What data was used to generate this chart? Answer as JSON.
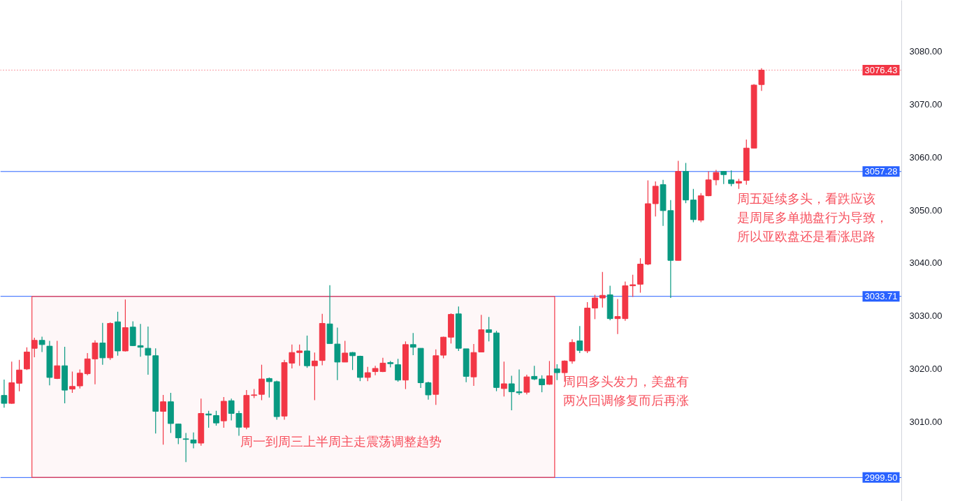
{
  "chart_data": {
    "type": "candlestick",
    "categories": [
      null,
      null,
      null,
      null,
      null,
      null,
      null,
      null,
      null,
      null,
      null,
      null,
      null,
      null,
      null,
      null,
      null,
      null,
      null,
      null,
      null,
      null,
      null,
      null,
      null,
      null,
      null,
      null,
      null,
      null,
      null,
      null,
      null,
      null,
      null,
      null,
      null,
      null,
      null,
      null,
      null,
      null,
      null,
      null,
      null,
      null,
      null,
      null,
      null,
      null,
      null,
      null,
      null,
      null,
      null,
      null,
      null,
      null,
      null,
      null,
      null,
      null,
      null,
      null,
      null,
      null,
      null,
      null,
      null,
      null,
      null,
      null,
      null,
      null,
      null,
      null,
      null,
      null,
      null,
      null,
      null,
      null,
      null,
      null,
      null,
      null,
      null,
      null,
      null,
      null,
      null,
      null,
      null,
      null,
      null,
      null,
      null,
      null,
      null,
      null,
      null,
      null,
      null,
      null,
      null,
      null,
      null,
      null,
      null,
      null,
      null,
      null,
      null,
      null,
      null,
      null,
      null,
      null,
      null
    ],
    "ohlc": [
      [
        3015.0,
        3018.0,
        3012.7,
        3013.5
      ],
      [
        3013.5,
        3021.4,
        3013.4,
        3017.4
      ],
      [
        3017.3,
        3021.7,
        3015.8,
        3019.8
      ],
      [
        3020.0,
        3024.1,
        3019.8,
        3023.2
      ],
      [
        3023.9,
        3025.9,
        3022.2,
        3025.4
      ],
      [
        3025.4,
        3026.1,
        3023.2,
        3024.6
      ],
      [
        3024.3,
        3025.3,
        3016.9,
        3018.4
      ],
      [
        3018.2,
        3025.3,
        3018.1,
        3020.6
      ],
      [
        3020.6,
        3024.2,
        3013.5,
        3016.0
      ],
      [
        3016.2,
        3019.5,
        3015.5,
        3016.7
      ],
      [
        3016.8,
        3019.9,
        3016.3,
        3019.2
      ],
      [
        3019.1,
        3023.0,
        3018.8,
        3021.9
      ],
      [
        3021.9,
        3025.4,
        3017.1,
        3024.9
      ],
      [
        3024.9,
        3028.7,
        3020.8,
        3022.1
      ],
      [
        3022.1,
        3028.8,
        3021.7,
        3028.6
      ],
      [
        3028.9,
        3030.8,
        3022.5,
        3023.4
      ],
      [
        3023.4,
        3033.1,
        3023.3,
        3027.8
      ],
      [
        3027.9,
        3029.0,
        3024.3,
        3024.4
      ],
      [
        3024.4,
        3028.5,
        3022.3,
        3024.1
      ],
      [
        3023.9,
        3028.0,
        3018.9,
        3022.6
      ],
      [
        3022.5,
        3023.9,
        3007.8,
        3012.0
      ],
      [
        3012.0,
        3015.1,
        3005.7,
        3013.8
      ],
      [
        3013.8,
        3015.5,
        3007.9,
        3009.7
      ],
      [
        3009.6,
        3009.7,
        3005.8,
        3007.0
      ],
      [
        3006.8,
        3007.9,
        3002.4,
        3006.7
      ],
      [
        3006.6,
        3008.0,
        3005.0,
        3006.0
      ],
      [
        3006.0,
        3014.4,
        3005.5,
        3011.6
      ],
      [
        3011.5,
        3012.1,
        3008.9,
        3011.3
      ],
      [
        3011.2,
        3012.1,
        3009.3,
        3009.8
      ],
      [
        3010.2,
        3014.7,
        3008.9,
        3013.9
      ],
      [
        3014.0,
        3014.4,
        3010.3,
        3011.6
      ],
      [
        3011.6,
        3012.1,
        3007.4,
        3009.0
      ],
      [
        3009.0,
        3016.0,
        3008.6,
        3015.0
      ],
      [
        3015.0,
        3016.2,
        3014.5,
        3015.1
      ],
      [
        3015.2,
        3020.8,
        3014.1,
        3018.1
      ],
      [
        3018.2,
        3018.4,
        3014.6,
        3017.6
      ],
      [
        3017.6,
        3017.8,
        3010.4,
        3011.0
      ],
      [
        3011.1,
        3021.7,
        3010.4,
        3021.2
      ],
      [
        3021.1,
        3024.6,
        3020.1,
        3023.1
      ],
      [
        3023.1,
        3024.6,
        3020.6,
        3023.4
      ],
      [
        3023.4,
        3026.3,
        3020.2,
        3020.6
      ],
      [
        3020.6,
        3023.1,
        3014.1,
        3021.5
      ],
      [
        3021.6,
        3030.4,
        3020.7,
        3028.6
      ],
      [
        3028.5,
        3035.8,
        3024.8,
        3024.8
      ],
      [
        3024.7,
        3027.8,
        3017.9,
        3021.3
      ],
      [
        3021.3,
        3025.3,
        3021.3,
        3023.0
      ],
      [
        3023.1,
        3023.2,
        3019.8,
        3022.5
      ],
      [
        3022.4,
        3022.5,
        3017.7,
        3018.4
      ],
      [
        3018.4,
        3020.4,
        3017.7,
        3019.3
      ],
      [
        3019.5,
        3020.6,
        3018.8,
        3020.1
      ],
      [
        3019.5,
        3022.1,
        3019.4,
        3021.1
      ],
      [
        3021.2,
        3021.5,
        3020.3,
        3021.0
      ],
      [
        3020.8,
        3021.9,
        3017.6,
        3017.9
      ],
      [
        3017.9,
        3025.2,
        3016.2,
        3024.6
      ],
      [
        3024.6,
        3026.8,
        3022.6,
        3024.1
      ],
      [
        3023.9,
        3023.9,
        3016.4,
        3017.4
      ],
      [
        3017.4,
        3017.6,
        3014.2,
        3015.1
      ],
      [
        3015.2,
        3023.7,
        3013.2,
        3022.5
      ],
      [
        3022.6,
        3026.1,
        3022.0,
        3026.0
      ],
      [
        3026.0,
        3030.5,
        3024.8,
        3030.3
      ],
      [
        3030.4,
        3031.8,
        3023.4,
        3023.9
      ],
      [
        3023.8,
        3023.8,
        3017.5,
        3018.6
      ],
      [
        3018.5,
        3024.7,
        3016.8,
        3023.1
      ],
      [
        3023.2,
        3030.2,
        3023.2,
        3027.4
      ],
      [
        3027.4,
        3029.8,
        3025.2,
        3026.9
      ],
      [
        3026.8,
        3027.2,
        3015.8,
        3016.5
      ],
      [
        3016.3,
        3021.4,
        3014.8,
        3017.2
      ],
      [
        3017.2,
        3018.7,
        3012.2,
        3015.7
      ],
      [
        3015.7,
        3019.9,
        3015.1,
        3015.5
      ],
      [
        3015.6,
        3018.9,
        3015.2,
        3018.5
      ],
      [
        3018.6,
        3020.6,
        3017.9,
        3018.1
      ],
      [
        3018.1,
        3018.8,
        3015.6,
        3017.0
      ],
      [
        3017.1,
        3021.5,
        3017.0,
        3018.7
      ],
      [
        3020.0,
        3020.9,
        3017.9,
        3019.3
      ],
      [
        3019.3,
        3021.6,
        3017.6,
        3021.5
      ],
      [
        3021.5,
        3025.6,
        3021.0,
        3025.0
      ],
      [
        3025.3,
        3028.1,
        3023.0,
        3023.5
      ],
      [
        3023.4,
        3032.6,
        3023.0,
        3031.5
      ],
      [
        3031.5,
        3034.0,
        3029.4,
        3033.4
      ],
      [
        3033.4,
        3038.3,
        3031.6,
        3033.9
      ],
      [
        3034.0,
        3035.7,
        3029.2,
        3029.5
      ],
      [
        3029.5,
        3033.2,
        3026.6,
        3029.9
      ],
      [
        3029.5,
        3036.5,
        3029.1,
        3035.7
      ],
      [
        3035.7,
        3037.8,
        3033.6,
        3035.9
      ],
      [
        3036.0,
        3040.9,
        3034.4,
        3039.8
      ],
      [
        3039.8,
        3055.6,
        3039.6,
        3051.2
      ],
      [
        3051.2,
        3055.4,
        3048.8,
        3054.5
      ],
      [
        3054.8,
        3055.7,
        3047.0,
        3049.9
      ],
      [
        3049.9,
        3051.9,
        3033.4,
        3040.5
      ],
      [
        3040.5,
        3059.3,
        3040.5,
        3057.3
      ],
      [
        3057.3,
        3058.9,
        3051.3,
        3051.9
      ],
      [
        3051.9,
        3054.0,
        3047.7,
        3048.2
      ],
      [
        3048.1,
        3053.2,
        3047.7,
        3052.7
      ],
      [
        3052.7,
        3057.3,
        3052.6,
        3055.7
      ],
      [
        3055.7,
        3057.6,
        3054.7,
        3057.1
      ],
      [
        3057.3,
        3057.4,
        3054.9,
        3056.7
      ],
      [
        3055.7,
        3057.5,
        3054.5,
        3055.0
      ],
      [
        3055.1,
        3055.9,
        3054.0,
        3055.4
      ],
      [
        3055.6,
        3063.3,
        3054.8,
        3061.7
      ],
      [
        3061.7,
        3073.8,
        3061.7,
        3073.6
      ],
      [
        3073.7,
        3076.8,
        3072.5,
        3076.43
      ],
      null,
      null,
      null,
      null,
      null,
      null,
      null,
      null,
      null,
      null,
      null,
      null,
      null,
      null,
      null,
      null,
      null,
      null
    ],
    "ylim": [
      2995.0,
      3089.6
    ],
    "yticks": [
      {
        "value": 3010,
        "label": "3010.00"
      },
      {
        "value": 3020,
        "label": "3020.00"
      },
      {
        "value": 3030,
        "label": "3030.00"
      },
      {
        "value": 3040,
        "label": "3040.00"
      },
      {
        "value": 3050,
        "label": "3050.00"
      },
      {
        "value": 3060,
        "label": "3060.00"
      },
      {
        "value": 3070,
        "label": "3070.00"
      },
      {
        "value": 3080,
        "label": "3080.00"
      }
    ],
    "tick_labels": "y",
    "ref_lines": [
      {
        "axis": "y",
        "value": 3076.43,
        "label": "3076.43",
        "color": "#f23645",
        "line_style": "dotted"
      },
      {
        "axis": "y",
        "value": 3057.28,
        "label": "3057.28",
        "color": "#2962ff",
        "line_style": "solid"
      },
      {
        "axis": "y",
        "value": 3033.71,
        "label": "3033.71",
        "color": "#2962ff",
        "line_style": "solid"
      },
      {
        "axis": "y",
        "value": 2999.5,
        "label": "2999.50",
        "color": "#2962ff",
        "line_style": "solid"
      }
    ],
    "bands": [
      {
        "axis": "y",
        "from": 2999.5,
        "to": 3033.71,
        "color": "#f23645"
      }
    ],
    "annotations": [
      "周一到周三上半周主走震荡调整趋势",
      "周四多头发力，美盘有两次回调修复而后再涨",
      "周五延续多头，看跌应该是周尾多单抛盘行为导致，所以亚欧盘还是看涨思路"
    ],
    "grid": false
  }
}
